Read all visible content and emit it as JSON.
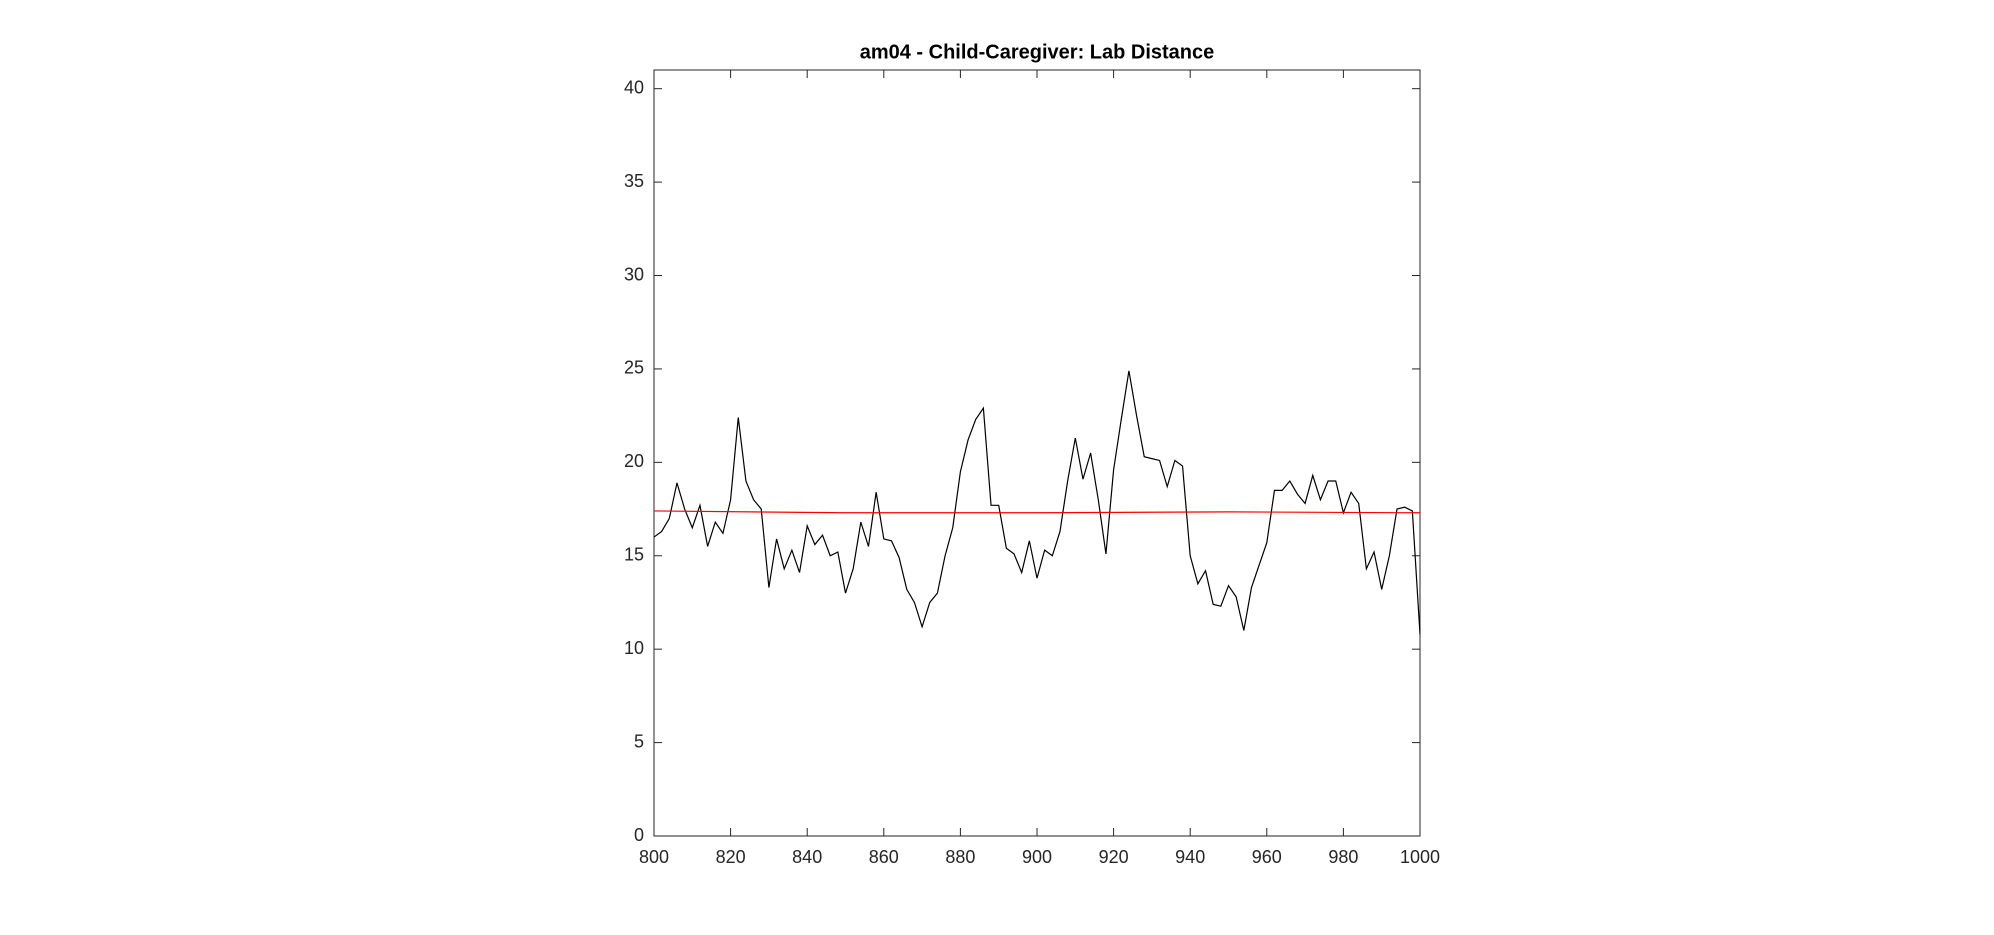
{
  "chart_data": {
    "type": "line",
    "title": "am04 - Child-Caregiver: Lab Distance",
    "xlim": [
      800,
      1000
    ],
    "xticks": [
      800,
      820,
      840,
      860,
      880,
      900,
      920,
      940,
      960,
      980,
      1000
    ],
    "ylim": [
      0,
      41
    ],
    "yticks": [
      0,
      5,
      10,
      15,
      20,
      25,
      30,
      35,
      40
    ],
    "series": [
      {
        "color": "#000000",
        "x": [
          800,
          802,
          804,
          806,
          808,
          810,
          812,
          814,
          816,
          818,
          820,
          822,
          824,
          826,
          828,
          830,
          832,
          834,
          836,
          838,
          840,
          842,
          844,
          846,
          848,
          850,
          852,
          854,
          856,
          858,
          860,
          862,
          864,
          866,
          868,
          870,
          872,
          874,
          876,
          878,
          880,
          882,
          884,
          886,
          888,
          890,
          892,
          894,
          896,
          898,
          900,
          902,
          904,
          906,
          908,
          910,
          912,
          914,
          916,
          918,
          920,
          922,
          924,
          926,
          928,
          930,
          932,
          934,
          936,
          938,
          940,
          942,
          944,
          946,
          948,
          950,
          952,
          954,
          956,
          958,
          960,
          962,
          964,
          966,
          968,
          970,
          972,
          974,
          976,
          978,
          980,
          982,
          984,
          986,
          988,
          990,
          992,
          994,
          996,
          998,
          1000
        ],
        "values": [
          16,
          16.3,
          17,
          18.9,
          17.5,
          16.5,
          17.7,
          15.5,
          16.8,
          16.2,
          18,
          22.4,
          19,
          18,
          17.5,
          13.3,
          15.9,
          14.3,
          15.3,
          14.1,
          16.6,
          15.6,
          16.1,
          15,
          15.2,
          13,
          14.3,
          16.8,
          15.5,
          18.4,
          15.9,
          15.8,
          14.9,
          13.2,
          12.5,
          11.2,
          12.5,
          13,
          15,
          16.5,
          19.5,
          21.2,
          22.3,
          22.9,
          17.7,
          17.7,
          15.4,
          15.1,
          14.1,
          15.8,
          13.8,
          15.3,
          15,
          16.3,
          19,
          21.3,
          19.1,
          20.5,
          18,
          15.1,
          19.6,
          22.3,
          24.9,
          22.5,
          20.3,
          20.2,
          20.1,
          18.7,
          20.1,
          19.8,
          15,
          13.5,
          14.2,
          12.4,
          12.3,
          13.4,
          12.8,
          11,
          13.3,
          14.5,
          15.7,
          18.5,
          18.5,
          19,
          18.3,
          17.8,
          19.3,
          18,
          19,
          19,
          17.3,
          18.4,
          17.8,
          14.3,
          15.2,
          13.2,
          15,
          17.5,
          17.6,
          17.4,
          10.8
        ]
      },
      {
        "color": "#ff0000",
        "x": [
          800,
          850,
          900,
          950,
          1000
        ],
        "values": [
          17.4,
          17.3,
          17.3,
          17.35,
          17.3
        ]
      }
    ]
  }
}
